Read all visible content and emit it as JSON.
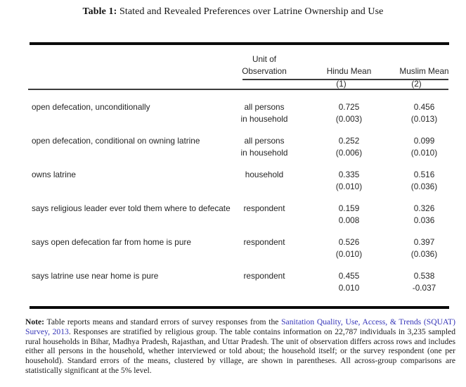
{
  "title": {
    "tag": "Table 1:",
    "text": " Stated and Revealed Preferences over Latrine Ownership and Use"
  },
  "table": {
    "header": {
      "unit_line1": "Unit of",
      "unit_line2": "Observation",
      "hindu_label": "Hindu Mean",
      "muslim_label": "Muslim Mean",
      "hindu_col_num": "(1)",
      "muslim_col_num": "(2)"
    },
    "rows": [
      {
        "label": "open defecation, unconditionally",
        "unit1": "all persons",
        "unit2": "in household",
        "hindu_mean": "0.725",
        "hindu_se": "(0.003)",
        "muslim_mean": "0.456",
        "muslim_se": "(0.013)"
      },
      {
        "label": "open defecation, conditional on owning latrine",
        "unit1": "all persons",
        "unit2": "in household",
        "hindu_mean": "0.252",
        "hindu_se": "(0.006)",
        "muslim_mean": "0.099",
        "muslim_se": "(0.010)"
      },
      {
        "label": "owns latrine",
        "unit1": "household",
        "unit2": "",
        "hindu_mean": "0.335",
        "hindu_se": "(0.010)",
        "muslim_mean": "0.516",
        "muslim_se": "(0.036)"
      },
      {
        "label": "says religious leader ever told them where to defecate",
        "unit1": "respondent",
        "unit2": "",
        "hindu_mean": "0.159",
        "hindu_se": "0.008",
        "muslim_mean": "0.326",
        "muslim_se": "0.036"
      },
      {
        "label": "says open defecation far from home is pure",
        "unit1": "respondent",
        "unit2": "",
        "hindu_mean": "0.526",
        "hindu_se": "(0.010)",
        "muslim_mean": "0.397",
        "muslim_se": "(0.036)"
      },
      {
        "label": "says latrine use near home is pure",
        "unit1": "respondent",
        "unit2": "",
        "hindu_mean": "0.455",
        "hindu_se": "0.010",
        "muslim_mean": "0.538",
        "muslim_se": "-0.037"
      }
    ]
  },
  "note": {
    "label": "Note:",
    "text_before_link": " Table reports means and standard errors of survey responses from the ",
    "link_text": "Sanitation Quality, Use, Access, & Trends (SQUAT) Survey, 2013",
    "text_after_link": ". Responses are stratified by religious group. The table contains information on 22,787 individuals in 3,235 sampled rural households in Bihar, Madhya Pradesh, Rajasthan, and Uttar Pradesh. The unit of observation differs across rows and includes either all persons in the household, whether interviewed or told about; the household itself; or the survey respondent (one per household). Standard errors of the means, clustered by village, are shown in parentheses. All across-group comparisons are statistically significant at the 5% level."
  },
  "colors": {
    "link_blue": "#3434b8",
    "rule_black": "#0b0b0b",
    "text": "#1f1f1f"
  }
}
